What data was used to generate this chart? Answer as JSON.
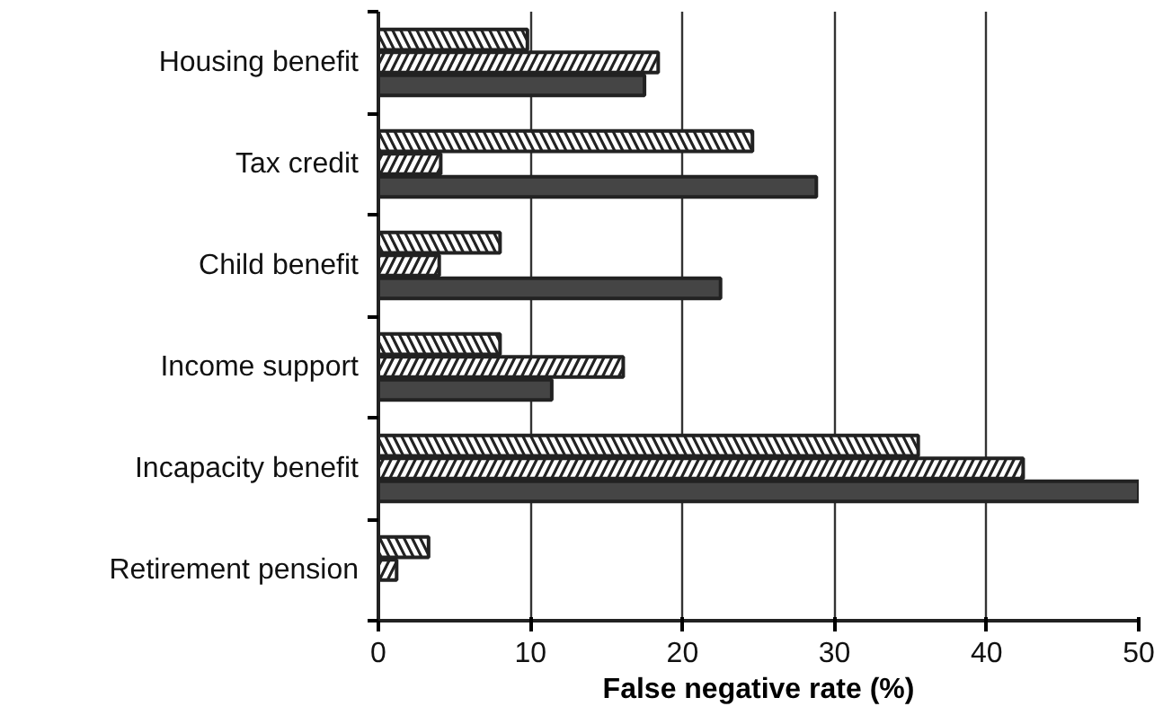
{
  "chart_data": {
    "type": "bar",
    "orientation": "horizontal",
    "xlabel": "False negative rate (%)",
    "categories": [
      "Housing benefit",
      "Tax credit",
      "Child benefit",
      "Income support",
      "Incapacity benefit",
      "Retirement pension"
    ],
    "series": [
      {
        "color": "#ffffff",
        "values": [
          9.8,
          24.6,
          8.0,
          8.0,
          35.5,
          3.3
        ]
      },
      {
        "color": "#ffffff",
        "values": [
          18.4,
          4.1,
          4.0,
          16.1,
          42.4,
          1.2
        ]
      },
      {
        "color": "#454545",
        "values": [
          17.5,
          28.8,
          22.5,
          11.4,
          50,
          null
        ]
      }
    ],
    "xlim": [
      0,
      50
    ],
    "xticks": [
      0,
      10,
      20,
      30,
      40,
      50
    ],
    "grid": "x"
  }
}
